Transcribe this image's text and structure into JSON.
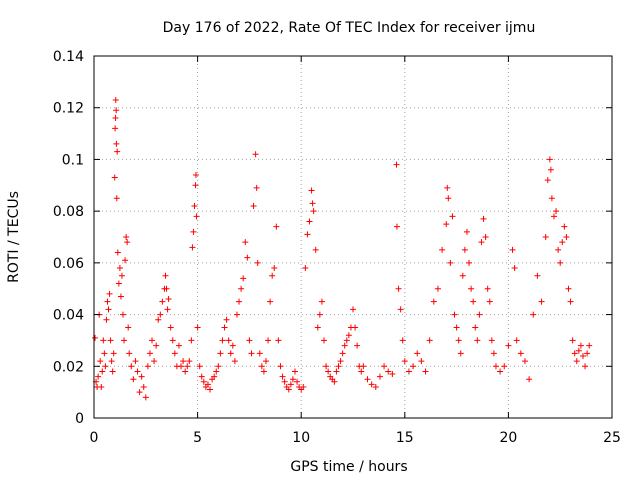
{
  "chart_data": {
    "type": "scatter",
    "title": "Day 176 of 2022, Rate Of TEC Index for receiver ijmu",
    "xlabel": "GPS time / hours",
    "ylabel": "ROTI / TECUs",
    "xlim": [
      0,
      25
    ],
    "ylim": [
      0,
      0.14
    ],
    "xticks": [
      0,
      5,
      10,
      15,
      20,
      25
    ],
    "yticks": [
      0,
      0.02,
      0.04,
      0.06,
      0.08,
      0.1,
      0.12,
      0.14
    ],
    "xtick_labels": [
      "0",
      "5",
      "10",
      "15",
      "20",
      "25"
    ],
    "ytick_labels": [
      "0",
      "0.02",
      "0.04",
      "0.06",
      "0.08",
      "0.1",
      "0.12",
      "0.14"
    ],
    "grid": true,
    "marker": "plus",
    "marker_color": "#ff0000",
    "series": [
      {
        "values": [
          [
            0.05,
            0.031
          ],
          [
            0.1,
            0.014
          ],
          [
            0.15,
            0.012
          ],
          [
            0.2,
            0.016
          ],
          [
            0.25,
            0.04
          ],
          [
            0.3,
            0.022
          ],
          [
            0.35,
            0.012
          ],
          [
            0.4,
            0.018
          ],
          [
            0.45,
            0.03
          ],
          [
            0.5,
            0.025
          ],
          [
            0.55,
            0.02
          ],
          [
            0.6,
            0.038
          ],
          [
            0.65,
            0.045
          ],
          [
            0.7,
            0.042
          ],
          [
            0.75,
            0.048
          ],
          [
            0.8,
            0.03
          ],
          [
            0.85,
            0.022
          ],
          [
            0.9,
            0.018
          ],
          [
            0.95,
            0.025
          ],
          [
            1.0,
            0.093
          ],
          [
            1.02,
            0.112
          ],
          [
            1.04,
            0.116
          ],
          [
            1.05,
            0.123
          ],
          [
            1.07,
            0.119
          ],
          [
            1.08,
            0.106
          ],
          [
            1.1,
            0.085
          ],
          [
            1.12,
            0.103
          ],
          [
            1.15,
            0.064
          ],
          [
            1.2,
            0.052
          ],
          [
            1.25,
            0.058
          ],
          [
            1.3,
            0.047
          ],
          [
            1.35,
            0.055
          ],
          [
            1.4,
            0.04
          ],
          [
            1.45,
            0.03
          ],
          [
            1.5,
            0.061
          ],
          [
            1.55,
            0.07
          ],
          [
            1.6,
            0.068
          ],
          [
            1.65,
            0.035
          ],
          [
            1.7,
            0.025
          ],
          [
            1.8,
            0.02
          ],
          [
            1.9,
            0.015
          ],
          [
            2.0,
            0.022
          ],
          [
            2.1,
            0.018
          ],
          [
            2.2,
            0.01
          ],
          [
            2.3,
            0.016
          ],
          [
            2.4,
            0.012
          ],
          [
            2.5,
            0.008
          ],
          [
            2.6,
            0.02
          ],
          [
            2.7,
            0.025
          ],
          [
            2.8,
            0.03
          ],
          [
            2.9,
            0.022
          ],
          [
            3.0,
            0.028
          ],
          [
            3.1,
            0.038
          ],
          [
            3.2,
            0.04
          ],
          [
            3.3,
            0.045
          ],
          [
            3.4,
            0.05
          ],
          [
            3.45,
            0.055
          ],
          [
            3.5,
            0.05
          ],
          [
            3.55,
            0.042
          ],
          [
            3.6,
            0.046
          ],
          [
            3.7,
            0.035
          ],
          [
            3.8,
            0.03
          ],
          [
            3.9,
            0.025
          ],
          [
            4.0,
            0.02
          ],
          [
            4.1,
            0.028
          ],
          [
            4.2,
            0.02
          ],
          [
            4.3,
            0.022
          ],
          [
            4.4,
            0.018
          ],
          [
            4.5,
            0.02
          ],
          [
            4.6,
            0.022
          ],
          [
            4.7,
            0.03
          ],
          [
            4.75,
            0.066
          ],
          [
            4.8,
            0.072
          ],
          [
            4.85,
            0.082
          ],
          [
            4.9,
            0.09
          ],
          [
            4.92,
            0.094
          ],
          [
            4.95,
            0.078
          ],
          [
            5.0,
            0.035
          ],
          [
            5.1,
            0.02
          ],
          [
            5.2,
            0.016
          ],
          [
            5.3,
            0.014
          ],
          [
            5.4,
            0.012
          ],
          [
            5.5,
            0.013
          ],
          [
            5.6,
            0.011
          ],
          [
            5.7,
            0.015
          ],
          [
            5.8,
            0.016
          ],
          [
            5.9,
            0.018
          ],
          [
            6.0,
            0.02
          ],
          [
            6.1,
            0.025
          ],
          [
            6.2,
            0.03
          ],
          [
            6.3,
            0.035
          ],
          [
            6.4,
            0.038
          ],
          [
            6.5,
            0.03
          ],
          [
            6.6,
            0.025
          ],
          [
            6.7,
            0.028
          ],
          [
            6.8,
            0.022
          ],
          [
            6.9,
            0.04
          ],
          [
            7.0,
            0.045
          ],
          [
            7.1,
            0.05
          ],
          [
            7.2,
            0.054
          ],
          [
            7.3,
            0.068
          ],
          [
            7.4,
            0.062
          ],
          [
            7.5,
            0.03
          ],
          [
            7.6,
            0.025
          ],
          [
            7.7,
            0.082
          ],
          [
            7.8,
            0.102
          ],
          [
            7.85,
            0.089
          ],
          [
            7.9,
            0.06
          ],
          [
            8.0,
            0.025
          ],
          [
            8.1,
            0.02
          ],
          [
            8.2,
            0.018
          ],
          [
            8.3,
            0.022
          ],
          [
            8.4,
            0.03
          ],
          [
            8.5,
            0.045
          ],
          [
            8.6,
            0.055
          ],
          [
            8.7,
            0.058
          ],
          [
            8.8,
            0.074
          ],
          [
            8.9,
            0.03
          ],
          [
            9.0,
            0.02
          ],
          [
            9.1,
            0.016
          ],
          [
            9.2,
            0.014
          ],
          [
            9.3,
            0.012
          ],
          [
            9.4,
            0.011
          ],
          [
            9.5,
            0.013
          ],
          [
            9.6,
            0.015
          ],
          [
            9.7,
            0.018
          ],
          [
            9.8,
            0.014
          ],
          [
            9.9,
            0.012
          ],
          [
            10.0,
            0.011
          ],
          [
            10.1,
            0.012
          ],
          [
            10.2,
            0.058
          ],
          [
            10.3,
            0.071
          ],
          [
            10.4,
            0.076
          ],
          [
            10.5,
            0.088
          ],
          [
            10.55,
            0.083
          ],
          [
            10.6,
            0.08
          ],
          [
            10.7,
            0.065
          ],
          [
            10.8,
            0.035
          ],
          [
            10.9,
            0.04
          ],
          [
            11.0,
            0.045
          ],
          [
            11.1,
            0.03
          ],
          [
            11.2,
            0.02
          ],
          [
            11.3,
            0.018
          ],
          [
            11.4,
            0.016
          ],
          [
            11.5,
            0.015
          ],
          [
            11.6,
            0.014
          ],
          [
            11.7,
            0.018
          ],
          [
            11.8,
            0.02
          ],
          [
            11.9,
            0.022
          ],
          [
            12.0,
            0.025
          ],
          [
            12.1,
            0.028
          ],
          [
            12.2,
            0.03
          ],
          [
            12.3,
            0.032
          ],
          [
            12.4,
            0.035
          ],
          [
            12.5,
            0.042
          ],
          [
            12.6,
            0.035
          ],
          [
            12.7,
            0.028
          ],
          [
            12.8,
            0.02
          ],
          [
            12.9,
            0.018
          ],
          [
            13.0,
            0.02
          ],
          [
            13.2,
            0.015
          ],
          [
            13.4,
            0.013
          ],
          [
            13.6,
            0.012
          ],
          [
            13.8,
            0.016
          ],
          [
            14.0,
            0.02
          ],
          [
            14.2,
            0.018
          ],
          [
            14.4,
            0.017
          ],
          [
            14.6,
            0.098
          ],
          [
            14.62,
            0.074
          ],
          [
            14.7,
            0.05
          ],
          [
            14.8,
            0.042
          ],
          [
            14.9,
            0.03
          ],
          [
            15.0,
            0.022
          ],
          [
            15.2,
            0.018
          ],
          [
            15.4,
            0.02
          ],
          [
            15.6,
            0.025
          ],
          [
            15.8,
            0.022
          ],
          [
            16.0,
            0.018
          ],
          [
            16.2,
            0.03
          ],
          [
            16.4,
            0.045
          ],
          [
            16.6,
            0.05
          ],
          [
            16.8,
            0.065
          ],
          [
            17.0,
            0.075
          ],
          [
            17.05,
            0.089
          ],
          [
            17.1,
            0.085
          ],
          [
            17.2,
            0.06
          ],
          [
            17.3,
            0.078
          ],
          [
            17.4,
            0.04
          ],
          [
            17.5,
            0.035
          ],
          [
            17.6,
            0.03
          ],
          [
            17.7,
            0.025
          ],
          [
            17.8,
            0.055
          ],
          [
            17.9,
            0.065
          ],
          [
            18.0,
            0.072
          ],
          [
            18.1,
            0.06
          ],
          [
            18.2,
            0.05
          ],
          [
            18.3,
            0.045
          ],
          [
            18.4,
            0.035
          ],
          [
            18.5,
            0.03
          ],
          [
            18.6,
            0.04
          ],
          [
            18.7,
            0.068
          ],
          [
            18.8,
            0.077
          ],
          [
            18.9,
            0.07
          ],
          [
            19.0,
            0.05
          ],
          [
            19.1,
            0.045
          ],
          [
            19.2,
            0.03
          ],
          [
            19.3,
            0.025
          ],
          [
            19.4,
            0.02
          ],
          [
            19.6,
            0.018
          ],
          [
            19.8,
            0.02
          ],
          [
            20.0,
            0.028
          ],
          [
            20.2,
            0.065
          ],
          [
            20.3,
            0.058
          ],
          [
            20.4,
            0.03
          ],
          [
            20.6,
            0.025
          ],
          [
            20.8,
            0.022
          ],
          [
            21.0,
            0.015
          ],
          [
            21.2,
            0.04
          ],
          [
            21.4,
            0.055
          ],
          [
            21.6,
            0.045
          ],
          [
            21.8,
            0.07
          ],
          [
            21.9,
            0.092
          ],
          [
            22.0,
            0.1
          ],
          [
            22.05,
            0.096
          ],
          [
            22.1,
            0.085
          ],
          [
            22.2,
            0.078
          ],
          [
            22.3,
            0.08
          ],
          [
            22.4,
            0.065
          ],
          [
            22.5,
            0.06
          ],
          [
            22.6,
            0.068
          ],
          [
            22.7,
            0.074
          ],
          [
            22.8,
            0.07
          ],
          [
            22.9,
            0.05
          ],
          [
            23.0,
            0.045
          ],
          [
            23.1,
            0.03
          ],
          [
            23.2,
            0.025
          ],
          [
            23.3,
            0.022
          ],
          [
            23.4,
            0.026
          ],
          [
            23.5,
            0.028
          ],
          [
            23.6,
            0.024
          ],
          [
            23.7,
            0.02
          ],
          [
            23.8,
            0.025
          ],
          [
            23.9,
            0.028
          ]
        ]
      }
    ]
  }
}
